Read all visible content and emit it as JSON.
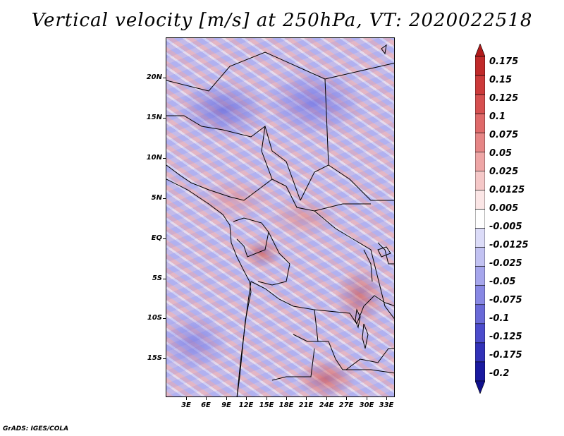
{
  "title": "Vertical velocity [m/s] at 250hPa, VT: 2020022518",
  "credit": "GrADS: IGES/COLA",
  "map": {
    "lat_labels": [
      "20N",
      "15N",
      "10N",
      "5N",
      "EQ",
      "5S",
      "10S",
      "15S"
    ],
    "lon_labels": [
      "3E",
      "6E",
      "9E",
      "12E",
      "15E",
      "18E",
      "21E",
      "24E",
      "27E",
      "30E",
      "33E"
    ]
  },
  "colorbar": {
    "labels": [
      "0.175",
      "0.15",
      "0.125",
      "0.1",
      "0.075",
      "0.05",
      "0.025",
      "0.0125",
      "0.005",
      "-0.005",
      "-0.0125",
      "-0.025",
      "-0.05",
      "-0.075",
      "-0.1",
      "-0.125",
      "-0.175",
      "-0.2"
    ],
    "colors": [
      "#b11a1a",
      "#c02a2a",
      "#cc3a3a",
      "#d65050",
      "#df6a6a",
      "#e68686",
      "#eea6a6",
      "#f5c8c8",
      "#fbe6e6",
      "#ffffff",
      "#dcdcf8",
      "#c2c2f2",
      "#a6a6ec",
      "#8888e4",
      "#6a6ad8",
      "#4c4ccc",
      "#3232b8",
      "#1a1aa0",
      "#10108c"
    ]
  }
}
